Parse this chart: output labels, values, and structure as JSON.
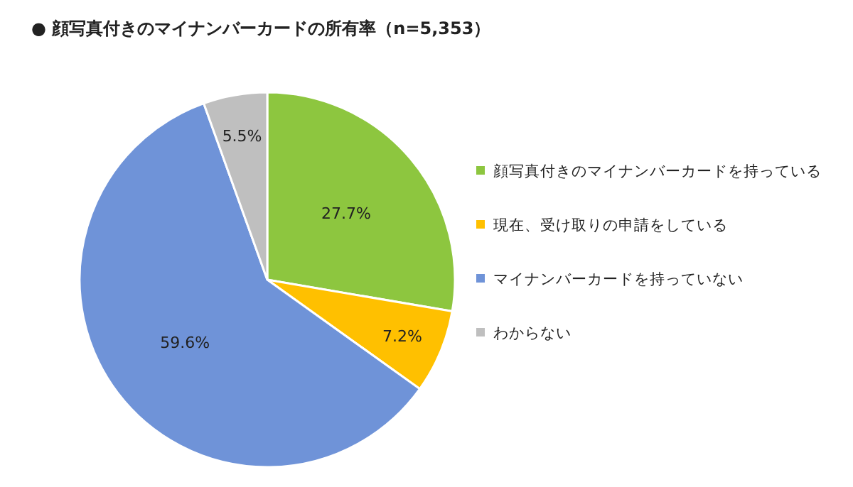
{
  "chart_data": {
    "type": "pie",
    "title": "● 顔写真付きのマイナンバーカードの所有率（n=5,353）",
    "categories": [
      "顔写真付きのマイナンバーカードを持っている",
      "現在、受け取りの申請をしている",
      "マイナンバーカードを持っていない",
      "わからない"
    ],
    "values": [
      27.7,
      7.2,
      59.6,
      5.5
    ],
    "colors": [
      "#8dc63f",
      "#ffc000",
      "#6f93d8",
      "#bfbfbf"
    ],
    "value_labels": [
      "27.7%",
      "7.2%",
      "59.6%",
      "5.5%"
    ],
    "legend": "right"
  }
}
